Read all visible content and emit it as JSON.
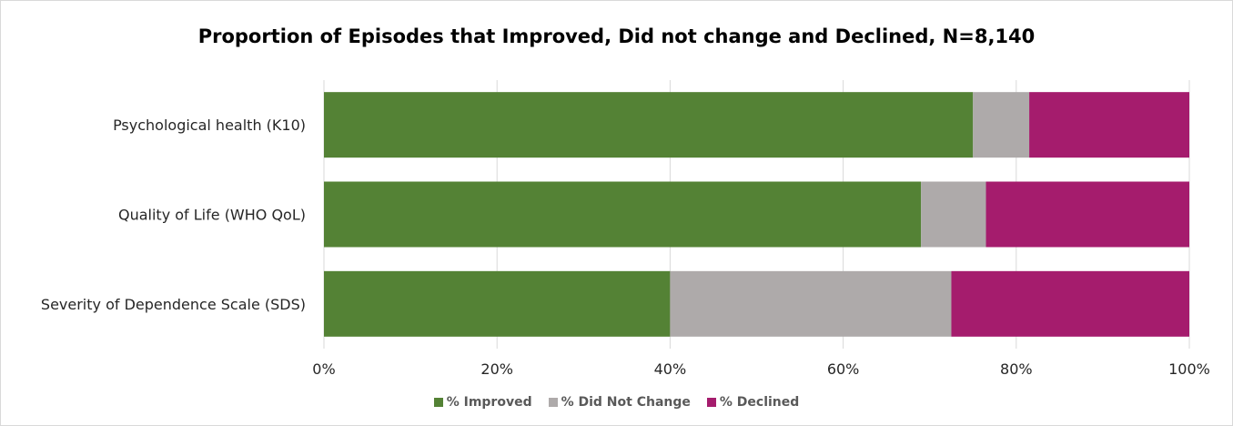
{
  "chart_data": {
    "type": "bar",
    "orientation": "horizontal",
    "stacked": true,
    "title": "Proportion of Episodes that Improved, Did not change and Declined, N=8,140",
    "categories": [
      "Psychological health (K10)",
      "Quality of Life (WHO QoL)",
      "Severity of Dependence Scale (SDS)"
    ],
    "series": [
      {
        "name": "% Improved",
        "color": "#548235",
        "values": [
          75,
          69,
          40
        ]
      },
      {
        "name": "% Did Not Change",
        "color": "#aeaaaa",
        "values": [
          6.5,
          7.5,
          32.5
        ]
      },
      {
        "name": "% Declined",
        "color": "#a51c6d",
        "values": [
          18.5,
          23.5,
          27.5
        ]
      }
    ],
    "xlim": [
      0,
      100
    ],
    "xticks": [
      "0%",
      "20%",
      "40%",
      "60%",
      "80%",
      "100%"
    ],
    "xlabel": "",
    "ylabel": "",
    "grid": "vertical",
    "legend_position": "bottom"
  }
}
